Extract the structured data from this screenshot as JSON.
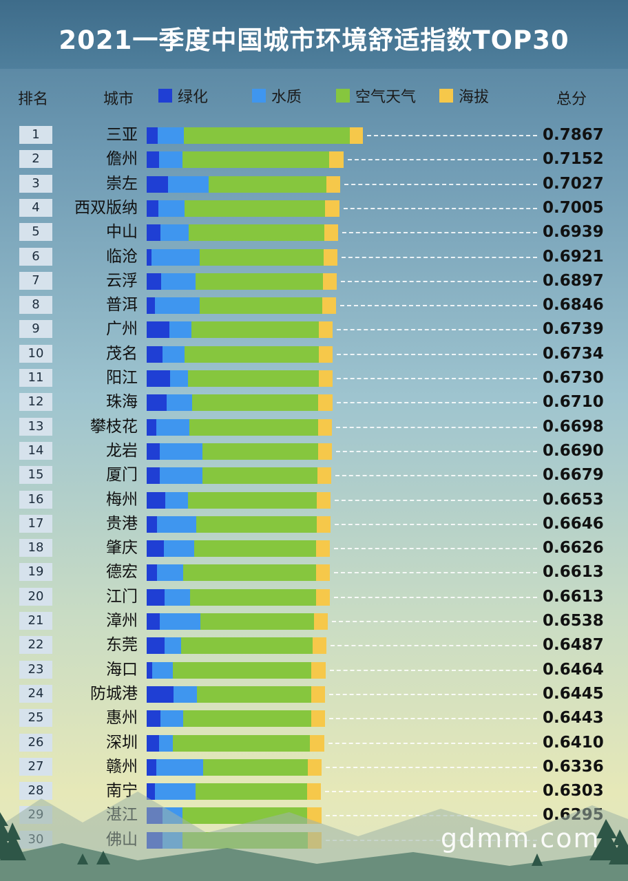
{
  "title": "2021一季度中国城市环境舒适指数TOP30",
  "header": {
    "rank": "排名",
    "city": "城市",
    "total": "总分"
  },
  "legend": [
    {
      "label": "绿化",
      "color": "#1f3fd4"
    },
    {
      "label": "水质",
      "color": "#3f96ef"
    },
    {
      "label": "空气天气",
      "color": "#86c63e"
    },
    {
      "label": "海拔",
      "color": "#f6c84a"
    }
  ],
  "watermark": "gdmm.com",
  "chart_data": {
    "type": "bar",
    "orientation": "horizontal",
    "stacked": true,
    "title": "2021一季度中国城市环境舒适指数TOP30",
    "series_names": [
      "绿化",
      "水质",
      "空气天气",
      "海拔"
    ],
    "colors": [
      "#1f3fd4",
      "#3f96ef",
      "#86c63e",
      "#f6c84a"
    ],
    "rows": [
      {
        "rank": "1",
        "city": "三亚",
        "total": "0.7867",
        "values": [
          0.0258,
          0.0612,
          0.3882,
          0.0315
        ]
      },
      {
        "rank": "2",
        "city": "儋州",
        "total": "0.7152",
        "values": [
          0.0287,
          0.0545,
          0.3449,
          0.0325
        ]
      },
      {
        "rank": "3",
        "city": "崇左",
        "total": "0.7027",
        "values": [
          0.0496,
          0.0962,
          0.2754,
          0.0325
        ]
      },
      {
        "rank": "4",
        "city": "西双版纳",
        "total": "0.7005",
        "values": [
          0.0268,
          0.0621,
          0.3296,
          0.0325
        ]
      },
      {
        "rank": "5",
        "city": "中山",
        "total": "0.6939",
        "values": [
          0.0325,
          0.066,
          0.3172,
          0.0325
        ]
      },
      {
        "rank": "6",
        "city": "临沧",
        "total": "0.6921",
        "values": [
          0.0105,
          0.1134,
          0.2908,
          0.0325
        ]
      },
      {
        "rank": "7",
        "city": "云浮",
        "total": "0.6897",
        "values": [
          0.0344,
          0.0794,
          0.2994,
          0.0325
        ]
      },
      {
        "rank": "8",
        "city": "普洱",
        "total": "0.6846",
        "values": [
          0.0191,
          0.1048,
          0.2869,
          0.0325
        ]
      },
      {
        "rank": "9",
        "city": "广州",
        "total": "0.6739",
        "values": [
          0.0535,
          0.0516,
          0.2974,
          0.0325
        ]
      },
      {
        "rank": "10",
        "city": "茂名",
        "total": "0.6734",
        "values": [
          0.0363,
          0.0526,
          0.3146,
          0.0325
        ]
      },
      {
        "rank": "11",
        "city": "阳江",
        "total": "0.6730",
        "values": [
          0.0545,
          0.043,
          0.3061,
          0.0325
        ]
      },
      {
        "rank": "12",
        "city": "珠海",
        "total": "0.6710",
        "values": [
          0.0468,
          0.0592,
          0.2964,
          0.0325
        ]
      },
      {
        "rank": "13",
        "city": "攀枝花",
        "total": "0.6698",
        "values": [
          0.0229,
          0.0774,
          0.3014,
          0.0325
        ]
      },
      {
        "rank": "14",
        "city": "龙岩",
        "total": "0.6690",
        "values": [
          0.0306,
          0.1008,
          0.2699,
          0.0325
        ]
      },
      {
        "rank": "15",
        "city": "厦门",
        "total": "0.6679",
        "values": [
          0.0306,
          0.1008,
          0.2689,
          0.0325
        ]
      },
      {
        "rank": "16",
        "city": "梅州",
        "total": "0.6653",
        "values": [
          0.043,
          0.0545,
          0.3014,
          0.0325
        ]
      },
      {
        "rank": "17",
        "city": "贵港",
        "total": "0.6646",
        "values": [
          0.0249,
          0.0918,
          0.2815,
          0.0325
        ]
      },
      {
        "rank": "18",
        "city": "肇庆",
        "total": "0.6626",
        "values": [
          0.0411,
          0.0698,
          0.286,
          0.0325
        ]
      },
      {
        "rank": "19",
        "city": "德宏",
        "total": "0.6613",
        "values": [
          0.0249,
          0.0602,
          0.3111,
          0.0325
        ]
      },
      {
        "rank": "20",
        "city": "江门",
        "total": "0.6613",
        "values": [
          0.042,
          0.0602,
          0.294,
          0.0325
        ]
      },
      {
        "rank": "21",
        "city": "漳州",
        "total": "0.6538",
        "values": [
          0.0306,
          0.0947,
          0.2662,
          0.0325
        ]
      },
      {
        "rank": "22",
        "city": "东莞",
        "total": "0.6487",
        "values": [
          0.042,
          0.0382,
          0.3084,
          0.0325
        ]
      },
      {
        "rank": "23",
        "city": "海口",
        "total": "0.6464",
        "values": [
          0.0134,
          0.0487,
          0.3242,
          0.0325
        ]
      },
      {
        "rank": "24",
        "city": "防城港",
        "total": "0.6445",
        "values": [
          0.0621,
          0.0554,
          0.2677,
          0.0325
        ]
      },
      {
        "rank": "25",
        "city": "惠州",
        "total": "0.6443",
        "values": [
          0.0325,
          0.0535,
          0.3,
          0.0325
        ]
      },
      {
        "rank": "26",
        "city": "深圳",
        "total": "0.6410",
        "values": [
          0.0287,
          0.0334,
          0.3208,
          0.0325
        ]
      },
      {
        "rank": "27",
        "city": "赣州",
        "total": "0.6336",
        "values": [
          0.0229,
          0.1089,
          0.2451,
          0.0325
        ]
      },
      {
        "rank": "28",
        "city": "南宁",
        "total": "0.6303",
        "values": [
          0.0201,
          0.0937,
          0.2624,
          0.0325
        ]
      },
      {
        "rank": "29",
        "city": "湛江",
        "total": "0.6295",
        "values": [
          0.0363,
          0.0468,
          0.2935,
          0.0325
        ]
      },
      {
        "rank": "30",
        "city": "佛山",
        "total": "",
        "values": [
          0.0372,
          0.0468,
          0.2935,
          0.0325
        ]
      }
    ],
    "legend_position": "top",
    "grid": false
  }
}
